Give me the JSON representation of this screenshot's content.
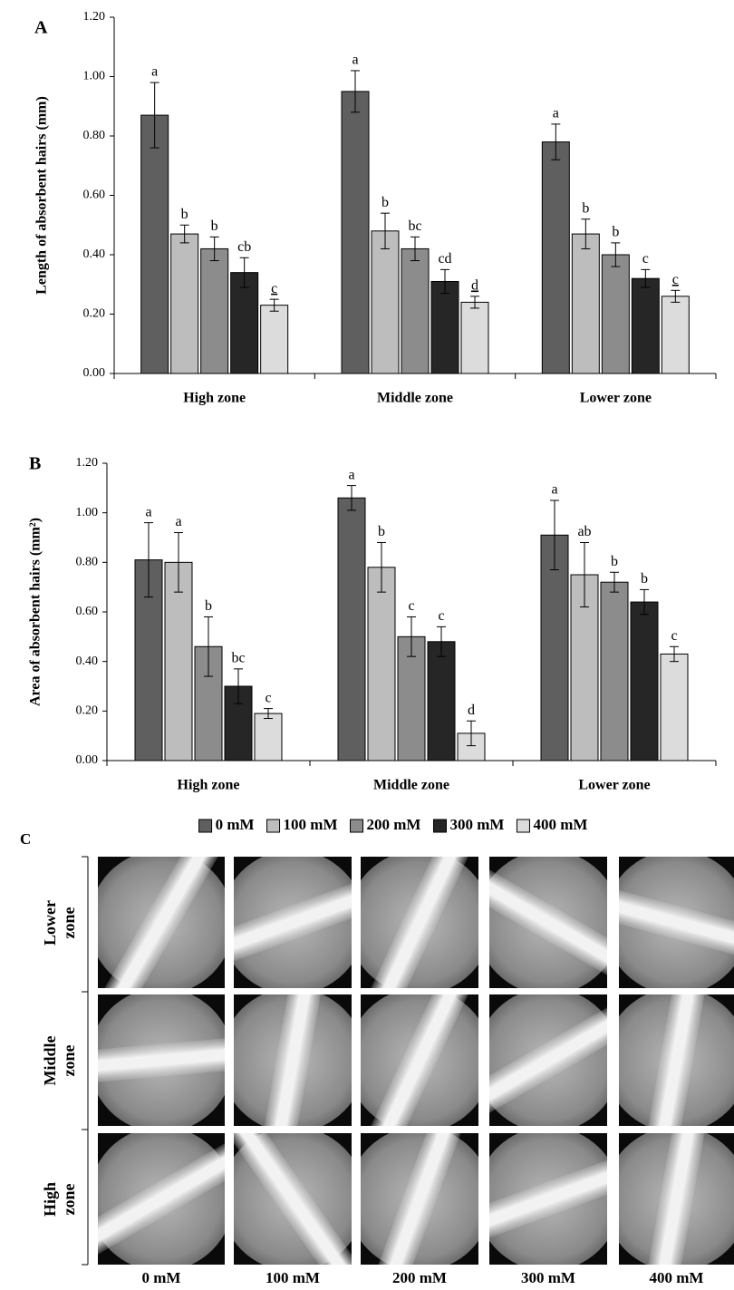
{
  "chart_data": [
    {
      "type": "bar",
      "panel_label": "A",
      "y_label": "Length of absorbent hairs (mm)",
      "categories": [
        "High zone",
        "Middle zone",
        "Lower zone"
      ],
      "series": [
        {
          "color": "#5f5f5f",
          "values": [
            0.87,
            0.95,
            0.78
          ],
          "errors": [
            0.11,
            0.07,
            0.06
          ],
          "letters": [
            "a",
            "a",
            "a"
          ]
        },
        {
          "color": "#bdbdbd",
          "values": [
            0.47,
            0.48,
            0.47
          ],
          "errors": [
            0.03,
            0.06,
            0.05
          ],
          "letters": [
            "b",
            "b",
            "b"
          ]
        },
        {
          "color": "#8c8c8c",
          "values": [
            0.42,
            0.42,
            0.4
          ],
          "errors": [
            0.04,
            0.04,
            0.04
          ],
          "letters": [
            "b",
            "bc",
            "b"
          ]
        },
        {
          "color": "#262626",
          "values": [
            0.34,
            0.31,
            0.32
          ],
          "errors": [
            0.05,
            0.04,
            0.03
          ],
          "letters": [
            "cb",
            "cd",
            "c"
          ]
        },
        {
          "color": "#dcdcdc",
          "values": [
            0.23,
            0.24,
            0.26
          ],
          "errors": [
            0.02,
            0.02,
            0.02
          ],
          "letters": [
            "c",
            "d",
            "c"
          ],
          "letters_underlined": true
        }
      ],
      "ylim": [
        0,
        1.2
      ],
      "yticks": [
        {
          "value": 0,
          "label": "0.00"
        },
        {
          "value": 0.2,
          "label": "0.20"
        },
        {
          "value": 0.4,
          "label": "0.40"
        },
        {
          "value": 0.6,
          "label": "0.60"
        },
        {
          "value": 0.8,
          "label": "0.80"
        },
        {
          "value": 1,
          "label": "1.00"
        },
        {
          "value": 1.2,
          "label": "1.20"
        }
      ]
    },
    {
      "type": "bar",
      "panel_label": "B",
      "y_label": "Area of absorbent hairs (mm²)",
      "categories": [
        "High zone",
        "Middle zone",
        "Lower zone"
      ],
      "series": [
        {
          "name": "0 mM",
          "color": "#5f5f5f",
          "values": [
            0.81,
            1.06,
            0.91
          ],
          "errors": [
            0.15,
            0.05,
            0.14
          ],
          "letters": [
            "a",
            "a",
            "a"
          ]
        },
        {
          "name": "100 mM",
          "color": "#bdbdbd",
          "values": [
            0.8,
            0.78,
            0.75
          ],
          "errors": [
            0.12,
            0.1,
            0.13
          ],
          "letters": [
            "a",
            "b",
            "ab"
          ]
        },
        {
          "name": "200 mM",
          "color": "#8c8c8c",
          "values": [
            0.46,
            0.5,
            0.72
          ],
          "errors": [
            0.12,
            0.08,
            0.04
          ],
          "letters": [
            "b",
            "c",
            "b"
          ]
        },
        {
          "name": "300 mM",
          "color": "#262626",
          "values": [
            0.3,
            0.48,
            0.64
          ],
          "errors": [
            0.07,
            0.06,
            0.05
          ],
          "letters": [
            "bc",
            "c",
            "b"
          ]
        },
        {
          "name": "400 mM",
          "color": "#dcdcdc",
          "values": [
            0.19,
            0.11,
            0.43
          ],
          "errors": [
            0.02,
            0.05,
            0.03
          ],
          "letters": [
            "c",
            "d",
            "c"
          ]
        }
      ],
      "ylim": [
        0,
        1.2
      ],
      "yticks": [
        {
          "value": 0,
          "label": "0.00"
        },
        {
          "value": 0.2,
          "label": "0.20"
        },
        {
          "value": 0.4,
          "label": "0.40"
        },
        {
          "value": 0.6,
          "label": "0.60"
        },
        {
          "value": 0.8,
          "label": "0.80"
        },
        {
          "value": 1,
          "label": "1.00"
        },
        {
          "value": 1.2,
          "label": "1.20"
        }
      ],
      "legend": "bottom"
    }
  ],
  "panel_c": {
    "label": "C",
    "rows": [
      "Lower zone",
      "Middle zone",
      "High zone"
    ],
    "columns": [
      "0 mM",
      "100 mM",
      "200 mM",
      "300 mM",
      "400 mM"
    ]
  }
}
